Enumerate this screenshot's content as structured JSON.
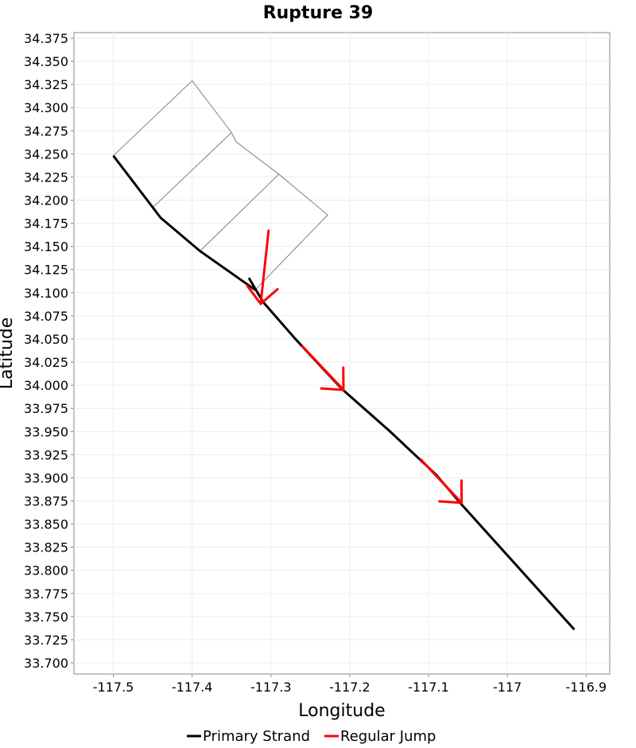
{
  "chart_data": {
    "type": "line",
    "title": "Rupture 39",
    "xlabel": "Longitude",
    "ylabel": "Latitude",
    "xlim": [
      -117.55,
      -116.87
    ],
    "ylim": [
      33.688,
      34.381
    ],
    "grid": true,
    "legend_placement": "bottom-center",
    "x_ticks": [
      -117.5,
      -117.4,
      -117.3,
      -117.2,
      -117.1,
      -117,
      -116.9
    ],
    "x_tick_labels": [
      "-117.5",
      "-117.4",
      "-117.3",
      "-117.2",
      "-117.1",
      "-117",
      "-116.9"
    ],
    "y_ticks": [
      33.7,
      33.725,
      33.75,
      33.775,
      33.8,
      33.825,
      33.85,
      33.875,
      33.9,
      33.925,
      33.95,
      33.975,
      34.0,
      34.025,
      34.05,
      34.075,
      34.1,
      34.125,
      34.15,
      34.175,
      34.2,
      34.225,
      34.25,
      34.275,
      34.3,
      34.325,
      34.35,
      34.375
    ],
    "y_tick_labels": [
      "33.700",
      "33.725",
      "33.750",
      "33.775",
      "33.800",
      "33.825",
      "33.850",
      "33.875",
      "33.900",
      "33.925",
      "33.950",
      "33.975",
      "34.000",
      "34.025",
      "34.050",
      "34.075",
      "34.100",
      "34.125",
      "34.150",
      "34.175",
      "34.200",
      "34.225",
      "34.250",
      "34.275",
      "34.300",
      "34.325",
      "34.350",
      "34.375"
    ],
    "legend": [
      {
        "name": "Primary Strand",
        "color": "#000000"
      },
      {
        "name": "Regular Jump",
        "color": "#ff0000"
      }
    ],
    "fault_outline": {
      "color": "#808080",
      "polylines": [
        [
          [
            -117.5,
            34.248
          ],
          [
            -117.4,
            34.329
          ],
          [
            -117.35,
            34.273
          ],
          [
            -117.344,
            34.263
          ],
          [
            -117.29,
            34.228
          ],
          [
            -117.228,
            34.184
          ],
          [
            -117.32,
            34.103
          ]
        ],
        [
          [
            -117.45,
            34.192
          ],
          [
            -117.35,
            34.273
          ]
        ],
        [
          [
            -117.39,
            34.145
          ],
          [
            -117.29,
            34.228
          ]
        ]
      ]
    },
    "series": [
      {
        "name": "Primary Strand",
        "color": "#000000",
        "segments": [
          [
            [
              -117.5,
              34.248
            ],
            [
              -117.44,
              34.181
            ],
            [
              -117.39,
              34.145
            ],
            [
              -117.32,
              34.103
            ]
          ],
          [
            [
              -117.328,
              34.116
            ],
            [
              -117.31,
              34.09
            ]
          ],
          [
            [
              -117.31,
              34.09
            ],
            [
              -117.27,
              34.051
            ],
            [
              -117.232,
              34.016
            ],
            [
              -117.21,
              33.996
            ],
            [
              -117.15,
              33.951
            ],
            [
              -117.11,
              33.919
            ],
            [
              -117.09,
              33.903
            ],
            [
              -117.06,
              33.873
            ],
            [
              -116.915,
              33.736
            ]
          ]
        ]
      },
      {
        "name": "Regular Jump",
        "color": "#ff0000",
        "jumps": [
          {
            "from": [
              -117.303,
              34.167
            ],
            "to": [
              -117.313,
              34.088
            ]
          },
          {
            "from": [
              -117.26,
              34.042
            ],
            "to": [
              -117.208,
              33.995
            ]
          },
          {
            "from": [
              -117.11,
              33.92
            ],
            "to": [
              -117.058,
              33.873
            ]
          }
        ]
      }
    ]
  }
}
